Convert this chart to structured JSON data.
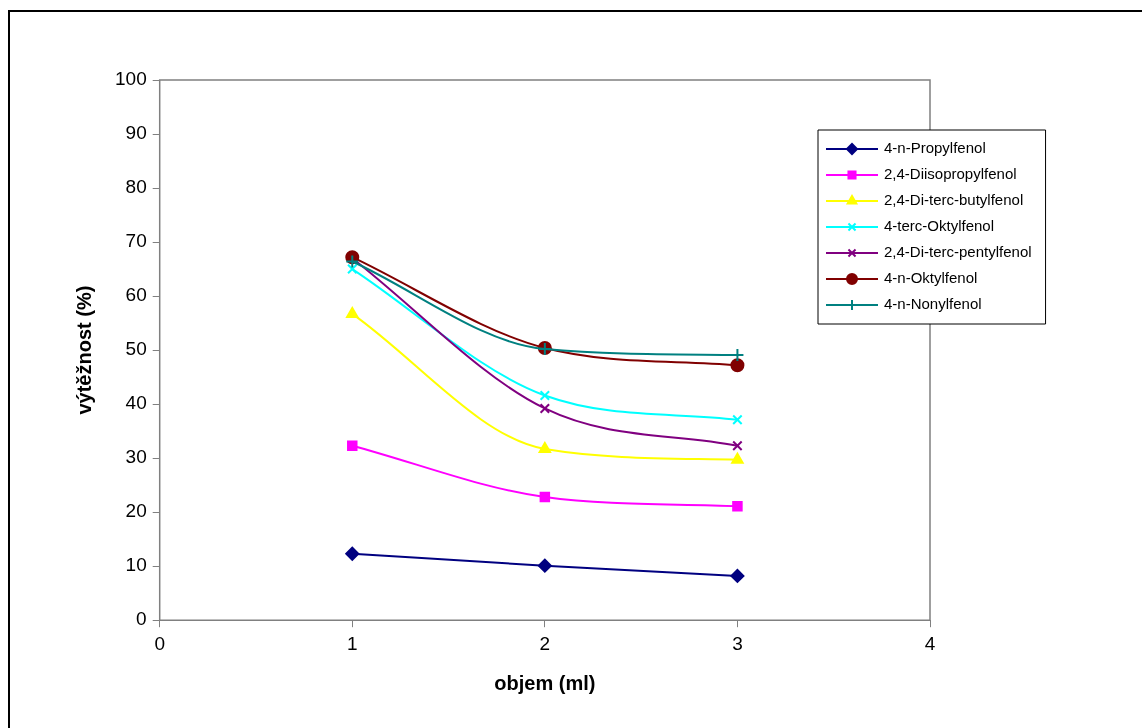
{
  "chart_data": {
    "type": "line",
    "xlabel": "objem (ml)",
    "ylabel": "výtěžnost (%)",
    "x": [
      1,
      2,
      3
    ],
    "xlim": [
      0,
      4
    ],
    "xticks": [
      0,
      1,
      2,
      3,
      4
    ],
    "ylim": [
      0,
      100
    ],
    "yticks": [
      0,
      10,
      20,
      30,
      40,
      50,
      60,
      70,
      80,
      90,
      100
    ],
    "grid": false,
    "legend": "top right",
    "line_style": "solid",
    "series": [
      {
        "name": "4-n-Propylfenol",
        "color": "#000080",
        "marker": "diamond",
        "values": [
          12.3,
          10.1,
          8.2
        ]
      },
      {
        "name": "2,4-Diisopropylfenol",
        "color": "#ff00ff",
        "marker": "square",
        "values": [
          32.3,
          22.8,
          21.1
        ]
      },
      {
        "name": "2,4-Di-terc-butylfenol",
        "color": "#ffff00",
        "marker": "triangle",
        "values": [
          56.7,
          31.7,
          29.7
        ]
      },
      {
        "name": "4-terc-Oktylfenol",
        "color": "#00ffff",
        "marker": "cross",
        "values": [
          65.0,
          41.6,
          37.1
        ]
      },
      {
        "name": "2,4-Di-terc-pentylfenol",
        "color": "#800080",
        "marker": "cross",
        "values": [
          67.0,
          39.2,
          32.3
        ]
      },
      {
        "name": "4-n-Oktylfenol",
        "color": "#800000",
        "marker": "circle",
        "values": [
          67.2,
          50.4,
          47.2
        ]
      },
      {
        "name": "4-n-Nonylfenol",
        "color": "#008080",
        "marker": "plus",
        "values": [
          66.4,
          50.2,
          49.1
        ]
      }
    ]
  }
}
